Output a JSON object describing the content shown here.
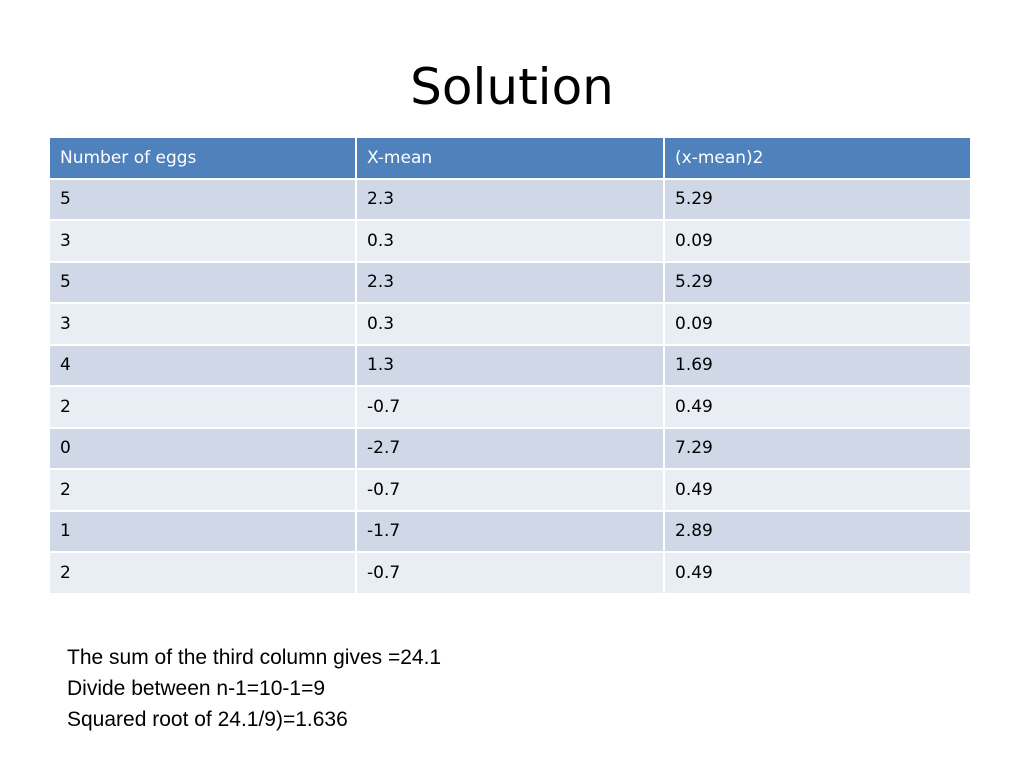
{
  "title": "Solution",
  "table": {
    "headers": [
      "Number of eggs",
      "X-mean",
      "(x-mean)2"
    ],
    "rows": [
      [
        "5",
        "2.3",
        "5.29"
      ],
      [
        "3",
        "0.3",
        "0.09"
      ],
      [
        "5",
        "2.3",
        "5.29"
      ],
      [
        "3",
        "0.3",
        "0.09"
      ],
      [
        "4",
        "1.3",
        "1.69"
      ],
      [
        "2",
        "-0.7",
        "0.49"
      ],
      [
        "0",
        "-2.7",
        "7.29"
      ],
      [
        "2",
        "-0.7",
        "0.49"
      ],
      [
        "1",
        "-1.7",
        "2.89"
      ],
      [
        "2",
        "-0.7",
        "0.49"
      ]
    ],
    "header_color": "#4f81bd",
    "row_color_odd": "#d0d8e8",
    "row_color_even": "#e9edf4"
  },
  "notes": [
    "The sum of the third column gives =24.1",
    "Divide between n-1=10-1=9",
    "Squared root of 24.1/9)=1.636"
  ]
}
